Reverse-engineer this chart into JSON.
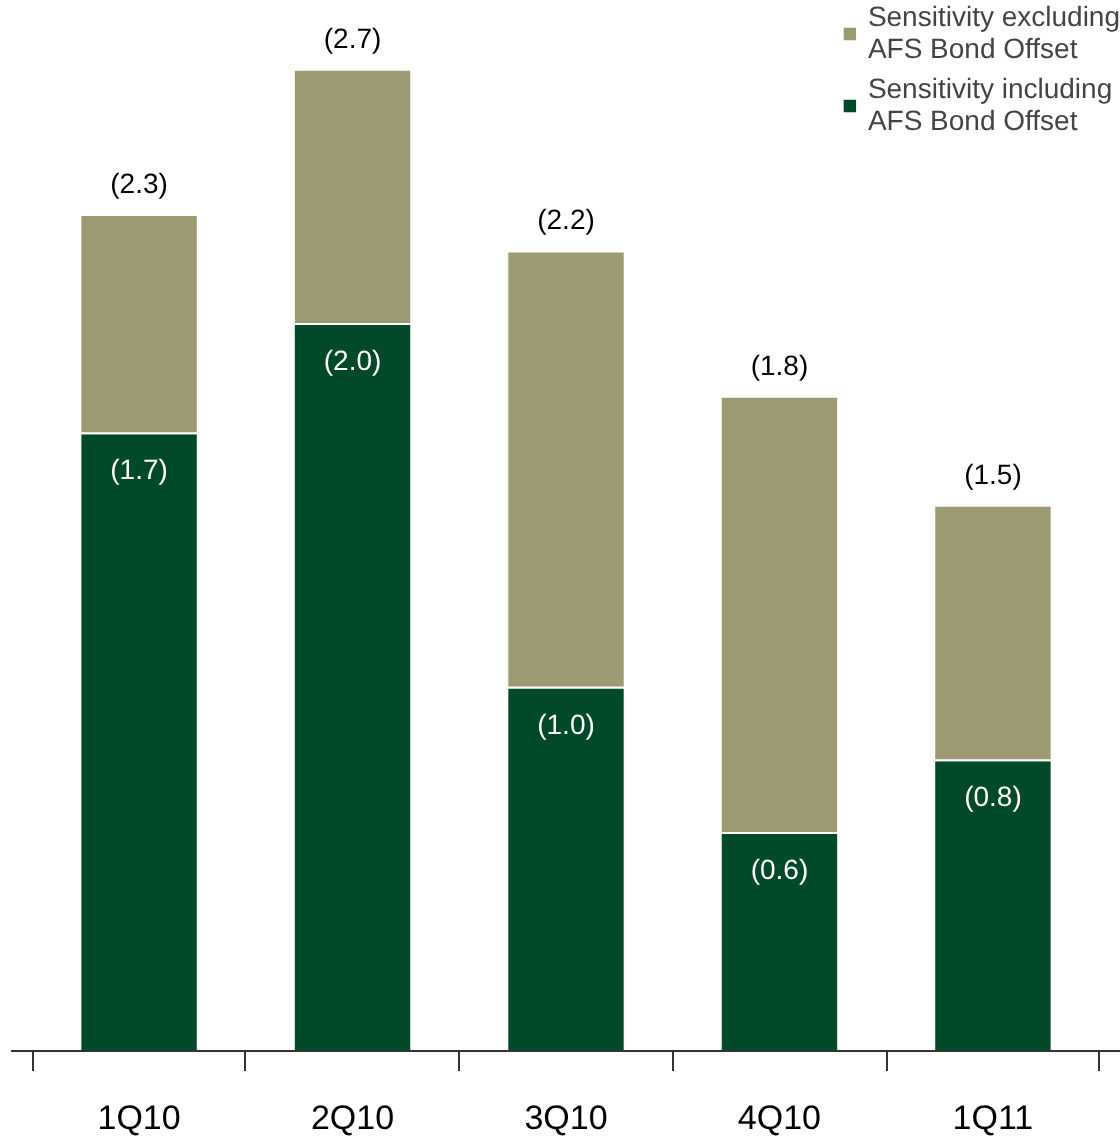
{
  "chart_data": {
    "type": "bar",
    "stacked": true,
    "categories": [
      "1Q10",
      "2Q10",
      "3Q10",
      "4Q10",
      "1Q11"
    ],
    "series": [
      {
        "name": "Sensitivity including AFS Bond Offset",
        "color": "#004a2a",
        "values": [
          1.7,
          2.0,
          1.0,
          0.6,
          0.8
        ],
        "value_labels": [
          "(1.7)",
          "(2.0)",
          "(1.0)",
          "(0.6)",
          "(0.8)"
        ]
      },
      {
        "name": "Sensitivity excluding AFS Bond Offset",
        "color": "#9b9a72",
        "values": [
          0.6,
          0.7,
          1.2,
          1.2,
          0.7
        ]
      }
    ],
    "totals": [
      "(2.3)",
      "(2.7)",
      "(2.2)",
      "(1.8)",
      "(1.5)"
    ],
    "legend": "top right",
    "grid": false
  }
}
